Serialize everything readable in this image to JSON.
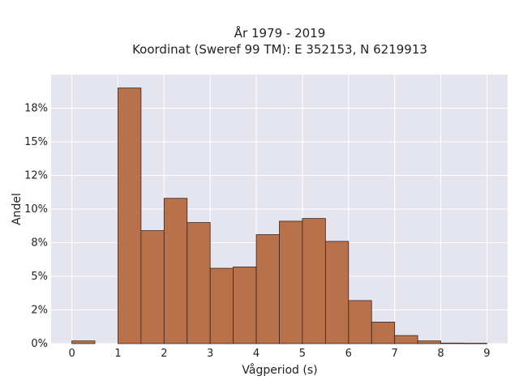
{
  "chart_data": {
    "type": "bar",
    "title_line1": "År 1979 - 2019",
    "title_line2": "Koordinat (Sweref 99 TM): E 352153, N 6219913",
    "xlabel": "Vågperiod (s)",
    "ylabel": "Andel",
    "bin_width": 0.5,
    "bins": [
      {
        "x0": 0.0,
        "value": 0.002
      },
      {
        "x0": 1.0,
        "value": 0.19
      },
      {
        "x0": 1.5,
        "value": 0.084
      },
      {
        "x0": 2.0,
        "value": 0.108
      },
      {
        "x0": 2.5,
        "value": 0.09
      },
      {
        "x0": 3.0,
        "value": 0.056
      },
      {
        "x0": 3.5,
        "value": 0.057
      },
      {
        "x0": 4.0,
        "value": 0.081
      },
      {
        "x0": 4.5,
        "value": 0.091
      },
      {
        "x0": 5.0,
        "value": 0.093
      },
      {
        "x0": 5.5,
        "value": 0.076
      },
      {
        "x0": 6.0,
        "value": 0.032
      },
      {
        "x0": 6.5,
        "value": 0.016
      },
      {
        "x0": 7.0,
        "value": 0.006
      },
      {
        "x0": 7.5,
        "value": 0.002
      },
      {
        "x0": 8.0,
        "value": 0.0004
      },
      {
        "x0": 8.5,
        "value": 0.0003
      }
    ],
    "xlim": [
      -0.45,
      9.45
    ],
    "ylim": [
      0,
      0.2
    ],
    "xticks": [
      0,
      1,
      2,
      3,
      4,
      5,
      6,
      7,
      8,
      9
    ],
    "yticks": [
      {
        "value": 0,
        "label": "0%"
      },
      {
        "value": 0.025,
        "label": "2%"
      },
      {
        "value": 0.05,
        "label": "5%"
      },
      {
        "value": 0.075,
        "label": "8%"
      },
      {
        "value": 0.1,
        "label": "10%"
      },
      {
        "value": 0.125,
        "label": "12%"
      },
      {
        "value": 0.15,
        "label": "15%"
      },
      {
        "value": 0.175,
        "label": "18%"
      }
    ],
    "bar_color": "#b8714b",
    "bar_edge_color": "#3d2418",
    "plot_bg": "#e5e5ef",
    "grid": true
  }
}
